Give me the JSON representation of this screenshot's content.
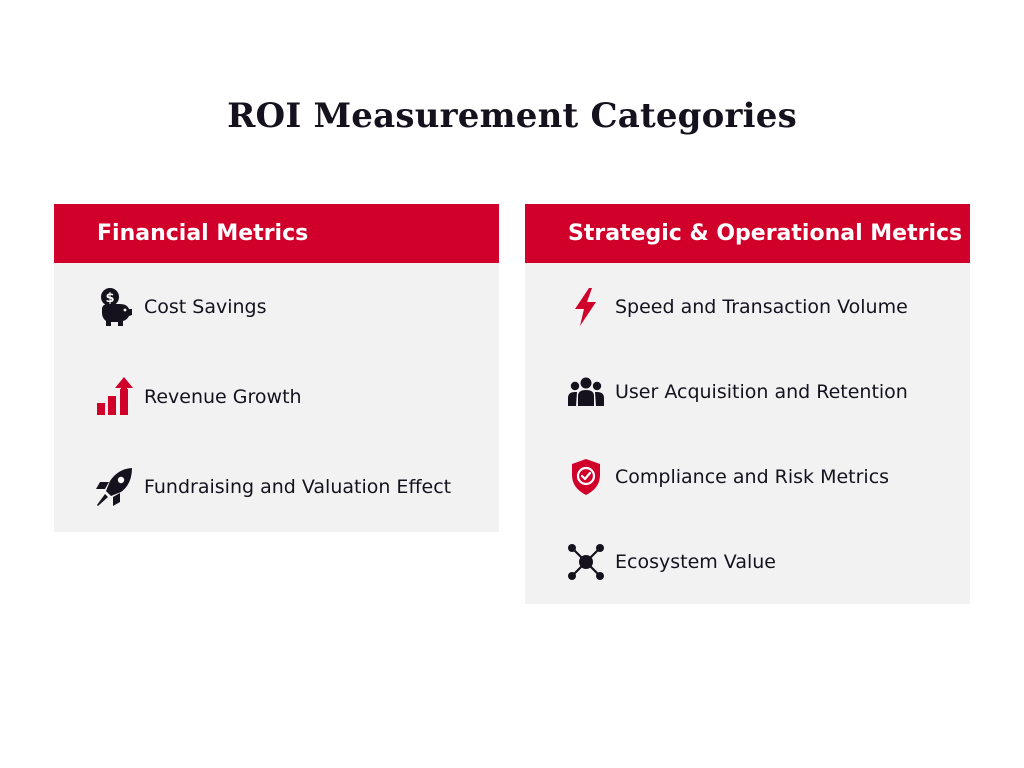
{
  "title": "ROI Measurement Categories",
  "panels": [
    {
      "header": "Financial Metrics",
      "items": [
        {
          "label": "Cost Savings",
          "icon": "piggy-bank-dollar-icon"
        },
        {
          "label": "Revenue Growth",
          "icon": "bar-chart-growth-icon"
        },
        {
          "label": "Fundraising and Valuation Effect",
          "icon": "rocket-icon"
        }
      ]
    },
    {
      "header": "Strategic & Operational Metrics",
      "items": [
        {
          "label": "Speed and Transaction Volume",
          "icon": "lightning-bolt-icon"
        },
        {
          "label": "User Acquisition and Retention",
          "icon": "users-group-icon"
        },
        {
          "label": "Compliance and Risk Metrics",
          "icon": "shield-check-icon"
        },
        {
          "label": "Ecosystem Value",
          "icon": "network-nodes-icon"
        }
      ]
    }
  ],
  "colors": {
    "accent": "#d0002b",
    "panel_bg": "#f2f2f3",
    "text": "#15121e"
  }
}
